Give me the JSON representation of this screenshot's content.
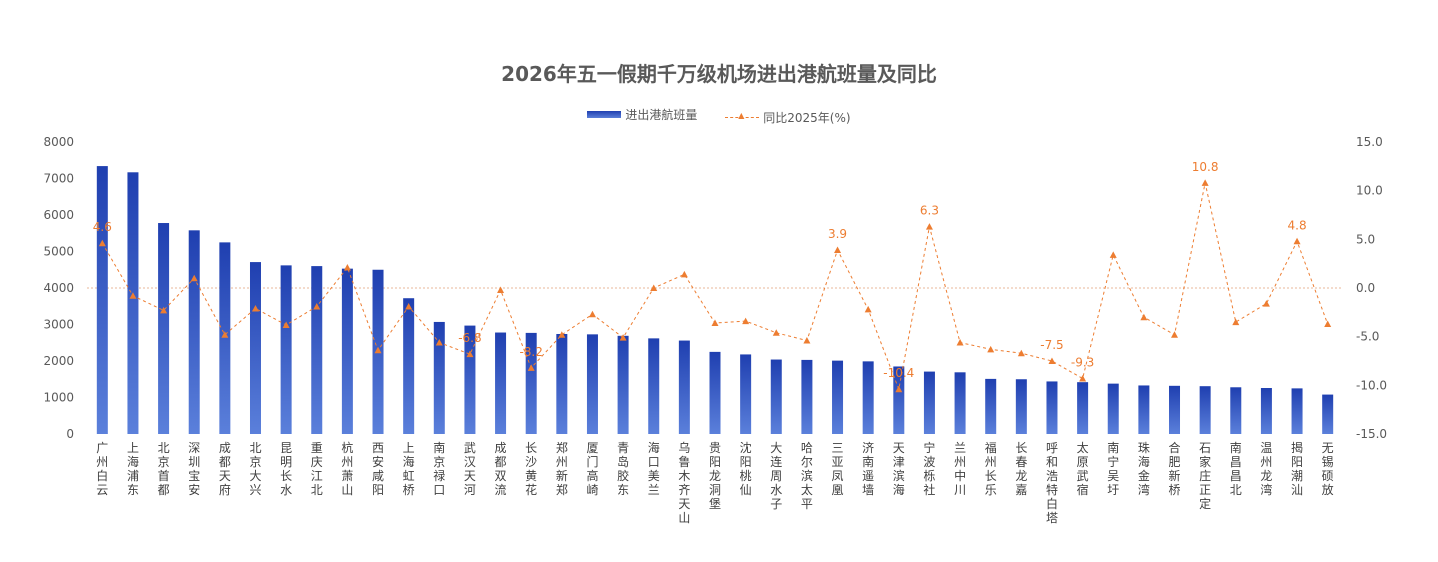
{
  "chart_data": {
    "type": "bar",
    "title": "2026年五一假期千万级机场进出港航班量及同比",
    "categories": [
      "广州白云",
      "上海浦东",
      "北京首都",
      "深圳宝安",
      "成都天府",
      "北京大兴",
      "昆明长水",
      "重庆江北",
      "杭州萧山",
      "西安咸阳",
      "上海虹桥",
      "南京禄口",
      "武汉天河",
      "成都双流",
      "长沙黄花",
      "郑州新郑",
      "厦门高崎",
      "青岛胶东",
      "海口美兰",
      "乌鲁木齐天山",
      "贵阳龙洞堡",
      "沈阳桃仙",
      "大连周水子",
      "哈尔滨太平",
      "三亚凤凰",
      "济南遥墙",
      "天津滨海",
      "宁波栎社",
      "兰州中川",
      "福州长乐",
      "长春龙嘉",
      "呼和浩特白塔",
      "太原武宿",
      "南宁吴圩",
      "珠海金湾",
      "合肥新桥",
      "石家庄正定",
      "南昌昌北",
      "温州龙湾",
      "揭阳潮汕",
      "无锡硕放"
    ],
    "series": [
      {
        "name": "进出港航班量",
        "axis": "left",
        "type": "bar",
        "color": "#2a48b8",
        "values": [
          7340,
          7170,
          5780,
          5580,
          5250,
          4710,
          4620,
          4600,
          4530,
          4500,
          3720,
          3070,
          2970,
          2780,
          2770,
          2740,
          2730,
          2690,
          2620,
          2560,
          2250,
          2180,
          2040,
          2030,
          2010,
          1990,
          1850,
          1710,
          1690,
          1510,
          1500,
          1440,
          1420,
          1380,
          1330,
          1320,
          1310,
          1280,
          1260,
          1250,
          1080
        ]
      },
      {
        "name": "同比2025年(%)",
        "axis": "right",
        "type": "line",
        "color": "#ed7d31",
        "values": [
          4.6,
          -0.8,
          -2.3,
          1.0,
          -4.8,
          -2.1,
          -3.8,
          -1.9,
          2.1,
          -6.4,
          -1.9,
          -5.6,
          -6.8,
          -0.2,
          -8.2,
          -4.8,
          -2.7,
          -5.1,
          0.0,
          1.4,
          -3.6,
          -3.4,
          -4.6,
          -5.4,
          3.9,
          -2.2,
          -10.4,
          6.3,
          -5.6,
          -6.3,
          -6.7,
          -7.5,
          -9.3,
          3.4,
          -3.0,
          -4.8,
          10.8,
          -3.5,
          -1.6,
          4.8,
          -3.7
        ]
      }
    ],
    "labeled_points": {
      "indices": [
        0,
        12,
        14,
        24,
        26,
        27,
        31,
        32,
        36,
        39
      ],
      "labels": [
        "4.6",
        "-6.8",
        "-8.2",
        "3.9",
        "-10.4",
        "6.3",
        "-7.5",
        "-9.3",
        "10.8",
        "4.8"
      ]
    },
    "y_left": {
      "min": 0,
      "max": 8000,
      "ticks": [
        "0",
        "1000",
        "2000",
        "3000",
        "4000",
        "5000",
        "6000",
        "7000",
        "8000"
      ]
    },
    "y_right": {
      "min": -15,
      "max": 15,
      "ticks": [
        "-15.0",
        "-10.0",
        "-5.0",
        "0.0",
        "5.0",
        "10.0",
        "15.0"
      ]
    },
    "zero_reference_line": true,
    "grid": false,
    "legend_position": "top"
  },
  "legend": {
    "bar_label": "进出港航班量",
    "line_label": "同比2025年(%)"
  }
}
